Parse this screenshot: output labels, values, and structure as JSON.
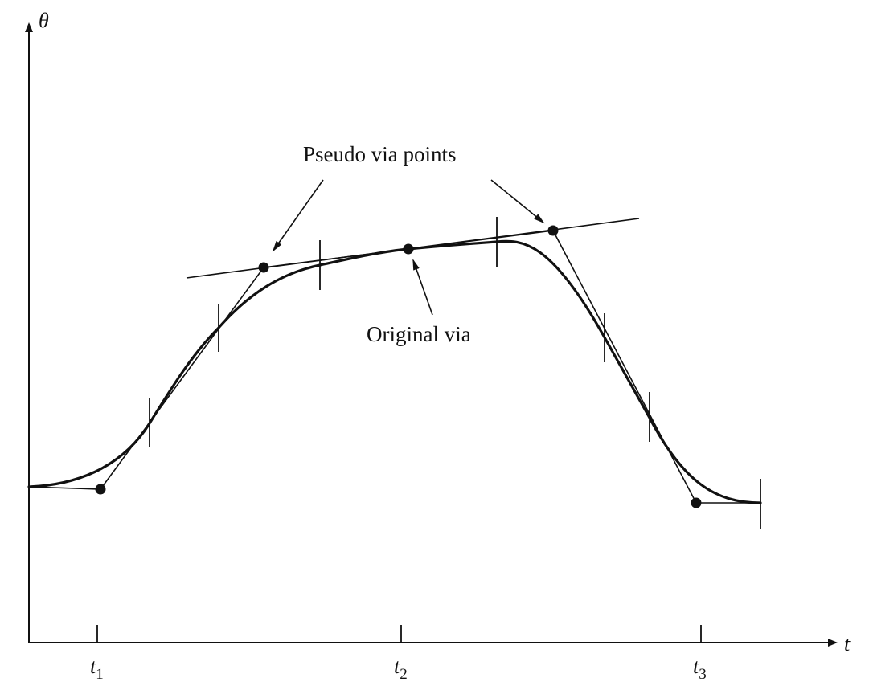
{
  "axes": {
    "y_label": "θ",
    "x_label": "t"
  },
  "time_labels": [
    {
      "base": "t",
      "sub": "1"
    },
    {
      "base": "t",
      "sub": "2"
    },
    {
      "base": "t",
      "sub": "3"
    }
  ],
  "annotations": {
    "pseudo": "Pseudo via points",
    "original": "Original via"
  }
}
